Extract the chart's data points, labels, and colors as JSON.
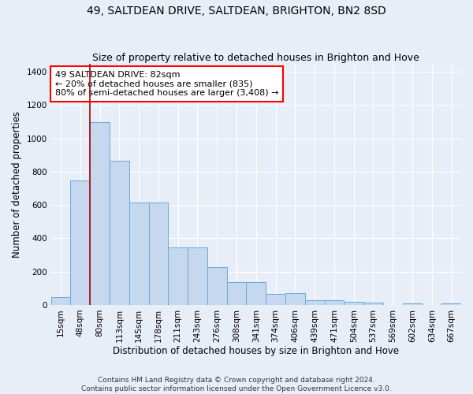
{
  "title": "49, SALTDEAN DRIVE, SALTDEAN, BRIGHTON, BN2 8SD",
  "subtitle": "Size of property relative to detached houses in Brighton and Hove",
  "xlabel": "Distribution of detached houses by size in Brighton and Hove",
  "ylabel": "Number of detached properties",
  "footer_line1": "Contains HM Land Registry data © Crown copyright and database right 2024.",
  "footer_line2": "Contains public sector information licensed under the Open Government Licence v3.0.",
  "bar_labels": [
    "15sqm",
    "48sqm",
    "80sqm",
    "113sqm",
    "145sqm",
    "178sqm",
    "211sqm",
    "243sqm",
    "276sqm",
    "308sqm",
    "341sqm",
    "374sqm",
    "406sqm",
    "439sqm",
    "471sqm",
    "504sqm",
    "537sqm",
    "569sqm",
    "602sqm",
    "634sqm",
    "667sqm"
  ],
  "bar_values": [
    48,
    750,
    1100,
    865,
    615,
    615,
    345,
    345,
    225,
    135,
    135,
    65,
    70,
    30,
    30,
    20,
    15,
    0,
    10,
    0,
    10
  ],
  "bar_color": "#c5d8f0",
  "bar_edge_color": "#6aaad4",
  "annotation_text": "49 SALTDEAN DRIVE: 82sqm\n← 20% of detached houses are smaller (835)\n80% of semi-detached houses are larger (3,408) →",
  "vline_bar_index": 2,
  "vline_color": "#aa0000",
  "ylim": [
    0,
    1450
  ],
  "background_color": "#e8eef8",
  "grid_color": "#d0d8e8",
  "title_fontsize": 10,
  "subtitle_fontsize": 9,
  "xlabel_fontsize": 8.5,
  "ylabel_fontsize": 8.5,
  "tick_fontsize": 7.5,
  "annotation_fontsize": 8,
  "footer_fontsize": 6.5
}
